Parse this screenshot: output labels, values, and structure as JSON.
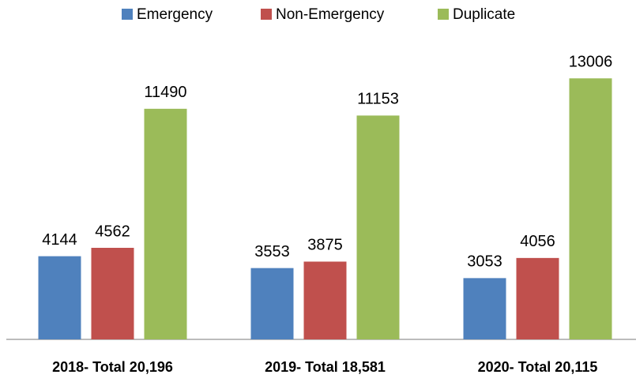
{
  "chart_data": {
    "type": "bar",
    "categories": [
      "2018- Total 20,196",
      "2019- Total 18,581",
      "2020- Total 20,115"
    ],
    "series": [
      {
        "name": "Emergency",
        "color": "#4f81bd",
        "values": [
          4144,
          3553,
          3053
        ]
      },
      {
        "name": "Non-Emergency",
        "color": "#c0504d",
        "values": [
          4562,
          3875,
          4056
        ]
      },
      {
        "name": "Duplicate",
        "color": "#9bbb59",
        "values": [
          11490,
          11153,
          13006
        ]
      }
    ],
    "ylim": [
      0,
      14000
    ],
    "legend": "top"
  }
}
